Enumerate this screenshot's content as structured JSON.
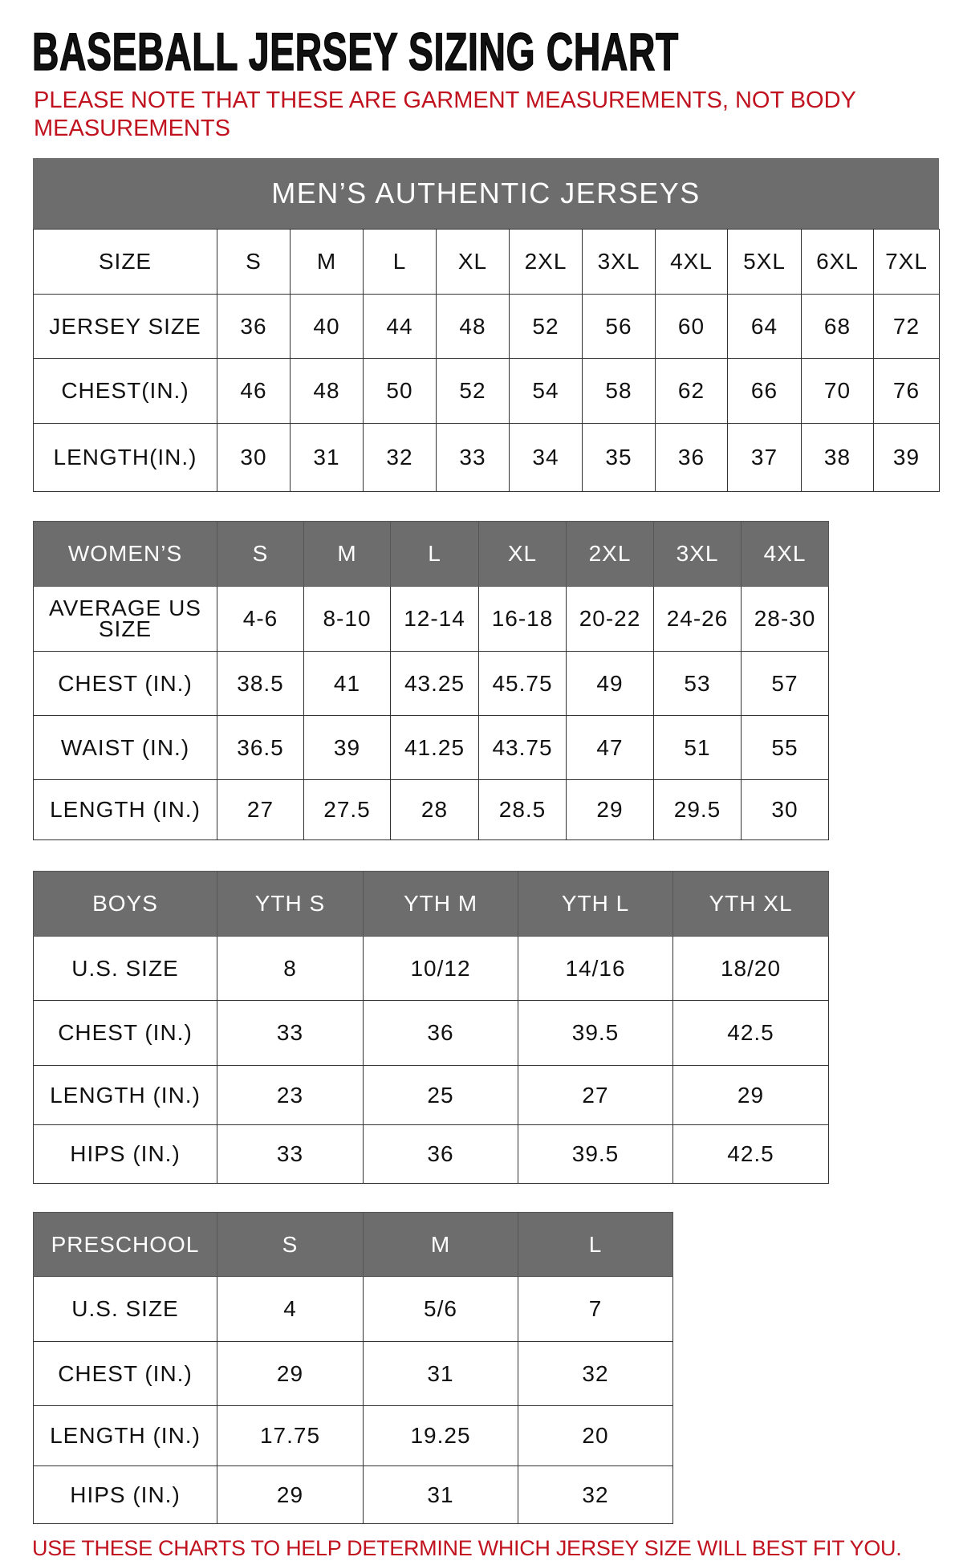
{
  "title": "BASEBALL JERSEY SIZING CHART",
  "note": "PLEASE NOTE THAT THESE ARE GARMENT MEASUREMENTS, NOT BODY MEASUREMENTS",
  "footer": "USE THESE CHARTS TO HELP DETERMINE WHICH JERSEY SIZE WILL BEST FIT YOU.",
  "colors": {
    "header_bg": "#6d6d6d",
    "note_red": "#c0121f"
  },
  "tables": [
    {
      "id": "mens",
      "banner": "MEN’S AUTHENTIC JERSEYS",
      "header_grey": false,
      "rows": [
        [
          "SIZE",
          "S",
          "M",
          "L",
          "XL",
          "2XL",
          "3XL",
          "4XL",
          "5XL",
          "6XL",
          "7XL"
        ],
        [
          "JERSEY SIZE",
          "36",
          "40",
          "44",
          "48",
          "52",
          "56",
          "60",
          "64",
          "68",
          "72"
        ],
        [
          "CHEST(IN.)",
          "46",
          "48",
          "50",
          "52",
          "54",
          "58",
          "62",
          "66",
          "70",
          "76"
        ],
        [
          "LENGTH(IN.)",
          "30",
          "31",
          "32",
          "33",
          "34",
          "35",
          "36",
          "37",
          "38",
          "39"
        ]
      ]
    },
    {
      "id": "womens",
      "header_grey": true,
      "rows": [
        [
          "WOMEN’S",
          "S",
          "M",
          "L",
          "XL",
          "2XL",
          "3XL",
          "4XL"
        ],
        [
          "AVERAGE US SIZE",
          "4-6",
          "8-10",
          "12-14",
          "16-18",
          "20-22",
          "24-26",
          "28-30"
        ],
        [
          "CHEST (IN.)",
          "38.5",
          "41",
          "43.25",
          "45.75",
          "49",
          "53",
          "57"
        ],
        [
          "WAIST (IN.)",
          "36.5",
          "39",
          "41.25",
          "43.75",
          "47",
          "51",
          "55"
        ],
        [
          "LENGTH (IN.)",
          "27",
          "27.5",
          "28",
          "28.5",
          "29",
          "29.5",
          "30"
        ]
      ]
    },
    {
      "id": "boys",
      "header_grey": true,
      "rows": [
        [
          "BOYS",
          "YTH S",
          "YTH M",
          "YTH L",
          "YTH XL"
        ],
        [
          "U.S. SIZE",
          "8",
          "10/12",
          "14/16",
          "18/20"
        ],
        [
          "CHEST (IN.)",
          "33",
          "36",
          "39.5",
          "42.5"
        ],
        [
          "LENGTH (IN.)",
          "23",
          "25",
          "27",
          "29"
        ],
        [
          "HIPS (IN.)",
          "33",
          "36",
          "39.5",
          "42.5"
        ]
      ]
    },
    {
      "id": "preschool",
      "header_grey": true,
      "rows": [
        [
          "PRESCHOOL",
          "S",
          "M",
          "L"
        ],
        [
          "U.S. SIZE",
          "4",
          "5/6",
          "7"
        ],
        [
          "CHEST (IN.)",
          "29",
          "31",
          "32"
        ],
        [
          "LENGTH (IN.)",
          "17.75",
          "19.25",
          "20"
        ],
        [
          "HIPS (IN.)",
          "29",
          "31",
          "32"
        ]
      ]
    }
  ]
}
